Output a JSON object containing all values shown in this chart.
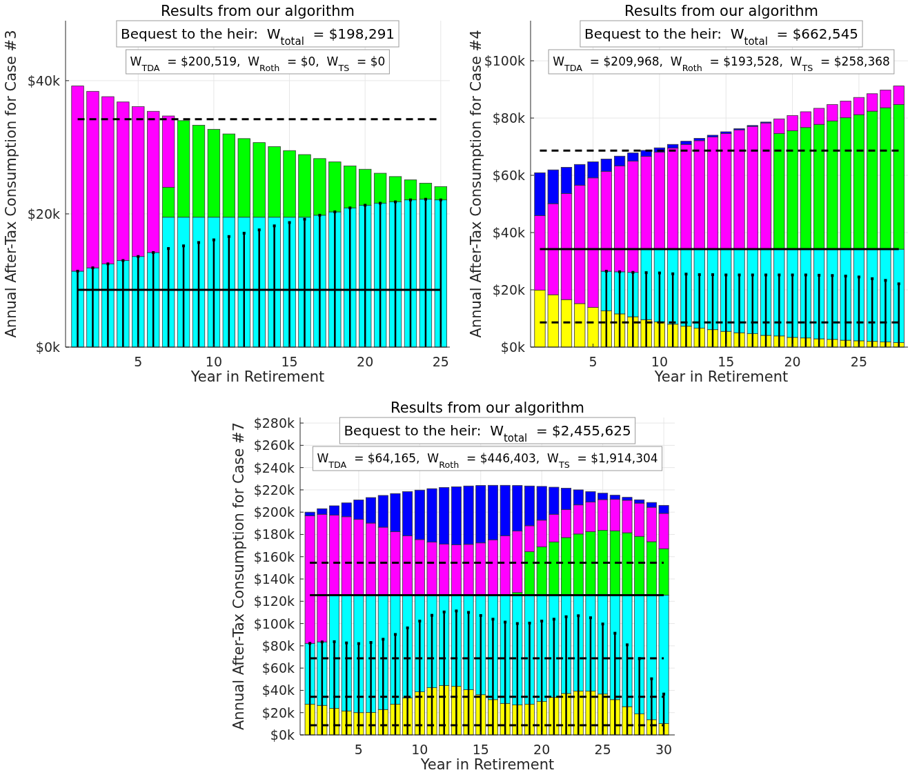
{
  "chart_data": [
    {
      "type": "bar",
      "stacked": true,
      "title": "Results from our algorithm",
      "xlabel": "Year in Retirement",
      "ylabel": "Annual After-Tax Consumption for Case #3",
      "annotations": [
        "Bequest to the heir:  W$_{total}$ = $198,291",
        "W$_{TDA}$ = $200,519,  W$_{Roth}$ = $0,  W$_{TS}$ = $0"
      ],
      "x": [
        1,
        2,
        3,
        4,
        5,
        6,
        7,
        8,
        9,
        10,
        11,
        12,
        13,
        14,
        15,
        16,
        17,
        18,
        19,
        20,
        21,
        22,
        23,
        24,
        25
      ],
      "xlim": [
        0.2,
        25.6
      ],
      "xticks": [
        5,
        10,
        15,
        20,
        25
      ],
      "ylim": [
        0,
        49
      ],
      "yticks": [
        {
          "value": 0,
          "label": "$0k"
        },
        {
          "value": 20,
          "label": "$20k"
        },
        {
          "value": 40,
          "label": "$40k"
        }
      ],
      "grid": true,
      "series": [
        {
          "color": "#00ffff",
          "values": [
            11.4,
            11.9,
            12.5,
            13.0,
            13.6,
            14.2,
            19.5,
            19.5,
            19.5,
            19.5,
            19.5,
            19.5,
            19.5,
            19.5,
            19.5,
            19.5,
            19.8,
            20.3,
            20.9,
            21.3,
            21.6,
            21.8,
            22.1,
            22.2,
            22.1
          ]
        },
        {
          "color": "#00ff00",
          "values": [
            null,
            null,
            null,
            null,
            null,
            null,
            4.5,
            14.5,
            13.8,
            13.2,
            12.5,
            11.8,
            11.2,
            10.6,
            10.0,
            9.4,
            8.5,
            7.5,
            6.3,
            5.4,
            4.5,
            3.8,
            3.0,
            2.4,
            2.0
          ]
        },
        {
          "color": "#ff00ff",
          "values": [
            27.8,
            26.5,
            25.1,
            23.8,
            22.5,
            21.2,
            10.7,
            null,
            null,
            null,
            null,
            null,
            null,
            null,
            null,
            null,
            null,
            null,
            null,
            null,
            null,
            null,
            null,
            null,
            null
          ]
        },
        {
          "type": "lollipop",
          "marker": "square",
          "color": "#000000",
          "values": [
            11.4,
            11.9,
            12.5,
            13.0,
            13.6,
            14.2,
            14.8,
            15.2,
            15.7,
            16.1,
            16.6,
            17.1,
            17.6,
            18.2,
            18.7,
            19.2,
            19.8,
            20.3,
            20.9,
            21.3,
            21.6,
            21.8,
            22.1,
            22.2,
            22.1
          ]
        }
      ],
      "ref_lines": [
        {
          "axis": "y",
          "value": 34.2,
          "color": "#000000",
          "line_style": "dashed"
        },
        {
          "axis": "y",
          "value": 8.6,
          "color": "#000000",
          "line_style": "solid"
        }
      ]
    },
    {
      "type": "bar",
      "stacked": true,
      "title": "Results from our algorithm",
      "xlabel": "Year in Retirement",
      "ylabel": "Annual After-Tax Consumption for Case #4",
      "annotations": [
        "Bequest to the heir:  W$_{total}$ = $662,545",
        "W$_{TDA}$ = $209,968,  W$_{Roth}$ = $193,528,  W$_{TS}$ = $258,368"
      ],
      "x": [
        1,
        2,
        3,
        4,
        5,
        6,
        7,
        8,
        9,
        10,
        11,
        12,
        13,
        14,
        15,
        16,
        17,
        18,
        19,
        20,
        21,
        22,
        23,
        24,
        25,
        26,
        27,
        28
      ],
      "xlim": [
        0.3,
        29.0
      ],
      "xticks": [
        5,
        10,
        15,
        20,
        25
      ],
      "ylim": [
        0,
        114
      ],
      "yticks": [
        {
          "value": 0,
          "label": "$0k"
        },
        {
          "value": 20,
          "label": "$20k"
        },
        {
          "value": 40,
          "label": "$40k"
        },
        {
          "value": 60,
          "label": "$60k"
        },
        {
          "value": 80,
          "label": "$80k"
        },
        {
          "value": 100,
          "label": "$100k"
        }
      ],
      "grid": true,
      "series": [
        {
          "color": "#ffff00",
          "values": [
            19.9,
            18.3,
            16.6,
            15.2,
            13.9,
            12.7,
            11.6,
            10.6,
            9.6,
            8.8,
            8.0,
            7.3,
            6.6,
            6.1,
            5.5,
            5.0,
            4.7,
            4.1,
            3.9,
            3.4,
            3.2,
            2.9,
            2.7,
            2.4,
            2.2,
            2.0,
            1.8,
            1.6
          ]
        },
        {
          "color": "#00ffff",
          "values": [
            null,
            null,
            null,
            null,
            null,
            13.8,
            14.7,
            15.5,
            24.6,
            25.4,
            26.2,
            26.9,
            27.6,
            28.1,
            28.7,
            29.2,
            29.5,
            30.1,
            30.3,
            30.8,
            31.0,
            31.3,
            31.5,
            31.8,
            32.0,
            32.2,
            32.4,
            32.6
          ]
        },
        {
          "color": "#00ff00",
          "values": [
            null,
            null,
            null,
            null,
            null,
            null,
            null,
            null,
            null,
            null,
            null,
            null,
            null,
            null,
            null,
            null,
            null,
            null,
            40.4,
            41.4,
            42.5,
            43.6,
            44.8,
            45.9,
            47.0,
            48.2,
            49.4,
            50.5
          ]
        },
        {
          "color": "#ff00ff",
          "values": [
            26.0,
            31.8,
            37.0,
            41.3,
            45.2,
            34.9,
            37.0,
            38.9,
            32.4,
            33.9,
            35.3,
            36.6,
            37.9,
            39.2,
            40.4,
            41.7,
            42.9,
            44.1,
            5.1,
            5.3,
            5.5,
            5.6,
            5.7,
            5.8,
            6.0,
            6.1,
            6.2,
            6.5
          ]
        },
        {
          "color": "#0000ff",
          "values": [
            15.0,
            11.8,
            9.2,
            7.3,
            5.6,
            4.3,
            3.4,
            2.8,
            2.1,
            1.5,
            1.3,
            1.1,
            0.8,
            0.6,
            0.6,
            0.4,
            0.3,
            0.3,
            null,
            null,
            null,
            null,
            null,
            null,
            null,
            null,
            null,
            null
          ]
        },
        {
          "type": "lollipop",
          "marker": "square",
          "color": "#000000",
          "values": [
            null,
            null,
            null,
            null,
            null,
            26.5,
            26.3,
            26.1,
            26.0,
            25.9,
            25.6,
            25.5,
            25.3,
            25.3,
            25.2,
            25.2,
            25.2,
            25.2,
            25.2,
            25.2,
            25.2,
            25.1,
            25.0,
            24.8,
            24.5,
            23.9,
            23.3,
            22.1
          ]
        }
      ],
      "ref_lines": [
        {
          "axis": "y",
          "value": 68.6,
          "color": "#000000",
          "line_style": "dashed"
        },
        {
          "axis": "y",
          "value": 34.2,
          "color": "#000000",
          "line_style": "solid"
        },
        {
          "axis": "y",
          "value": 8.6,
          "color": "#000000",
          "line_style": "dashed"
        }
      ]
    },
    {
      "type": "bar",
      "stacked": true,
      "title": "Results from our algorithm",
      "xlabel": "Year in Retirement",
      "ylabel": "Annual After-Tax Consumption for Case #7",
      "annotations": [
        "Bequest to the heir:  W$_{total}$ = $2,455,625",
        "W$_{TDA}$ = $64,165,  W$_{Roth}$ = $446,403,  W$_{TS}$ = $1,914,304"
      ],
      "x": [
        1,
        2,
        3,
        4,
        5,
        6,
        7,
        8,
        9,
        10,
        11,
        12,
        13,
        14,
        15,
        16,
        17,
        18,
        19,
        20,
        21,
        22,
        23,
        24,
        25,
        26,
        27,
        28,
        29,
        30
      ],
      "xlim": [
        0.2,
        30.9
      ],
      "xticks": [
        5,
        10,
        15,
        20,
        25,
        30
      ],
      "ylim": [
        0,
        285
      ],
      "yticks": [
        {
          "value": 0,
          "label": "$0k"
        },
        {
          "value": 20,
          "label": "$20k"
        },
        {
          "value": 40,
          "label": "$40k"
        },
        {
          "value": 60,
          "label": "$60k"
        },
        {
          "value": 80,
          "label": "$80k"
        },
        {
          "value": 100,
          "label": "$100k"
        },
        {
          "value": 120,
          "label": "$120k"
        },
        {
          "value": 140,
          "label": "$140k"
        },
        {
          "value": 160,
          "label": "$160k"
        },
        {
          "value": 180,
          "label": "$180k"
        },
        {
          "value": 200,
          "label": "$200k"
        },
        {
          "value": 220,
          "label": "$220k"
        },
        {
          "value": 240,
          "label": "$240k"
        },
        {
          "value": 260,
          "label": "$260k"
        },
        {
          "value": 280,
          "label": "$280k"
        }
      ],
      "grid": true,
      "series": [
        {
          "color": "#ffff00",
          "values": [
            27.6,
            26.5,
            23.9,
            21.5,
            20.0,
            20.2,
            22.8,
            27.6,
            33.3,
            38.7,
            42.4,
            44.3,
            43.7,
            40.7,
            36.1,
            31.7,
            28.3,
            27.0,
            27.6,
            30.0,
            33.7,
            37.2,
            39.3,
            39.3,
            36.7,
            31.7,
            25.4,
            18.9,
            13.7,
            10.2
          ]
        },
        {
          "color": "#00ffff",
          "values": [
            54.6,
            57.0,
            101.5,
            103.9,
            105.4,
            105.2,
            102.6,
            97.8,
            92.1,
            86.7,
            83.0,
            81.1,
            81.7,
            84.7,
            89.3,
            93.7,
            97.1,
            98.4,
            97.8,
            95.4,
            91.7,
            88.2,
            86.1,
            86.1,
            88.7,
            93.7,
            100.0,
            106.5,
            111.7,
            115.2
          ]
        },
        {
          "color": "#00ff00",
          "values": [
            null,
            null,
            null,
            null,
            null,
            null,
            null,
            null,
            null,
            null,
            null,
            null,
            null,
            null,
            null,
            null,
            null,
            2.4,
            39.2,
            43.5,
            47.9,
            51.8,
            55.0,
            57.2,
            58.3,
            57.9,
            56.1,
            52.9,
            48.1,
            41.8
          ]
        },
        {
          "color": "#ff00ff",
          "values": [
            114.5,
            114.6,
            72.0,
            70.5,
            68.1,
            64.8,
            61.1,
            57.0,
            53.3,
            50.0,
            47.7,
            45.9,
            45.3,
            45.7,
            47.0,
            49.8,
            53.3,
            55.3,
            23.2,
            23.9,
            24.8,
            25.2,
            26.1,
            26.5,
            27.6,
            28.2,
            29.2,
            29.8,
            30.9,
            31.7
          ]
        },
        {
          "color": "#0000ff",
          "values": [
            3.3,
            5.0,
            8.3,
            12.4,
            17.4,
            22.9,
            28.5,
            34.3,
            39.8,
            44.4,
            48.0,
            50.9,
            52.1,
            52.4,
            51.5,
            48.9,
            45.4,
            40.8,
            35.7,
            30.3,
            24.3,
            19.1,
            13.5,
            9.4,
            5.7,
            3.7,
            2.6,
            3.0,
            4.3,
            7.2
          ]
        },
        {
          "type": "lollipop",
          "marker": "square",
          "color": "#000000",
          "values": [
            82.2,
            83.5,
            83.7,
            82.6,
            82.0,
            83.0,
            85.9,
            90.2,
            96.1,
            102.2,
            107.4,
            110.4,
            111.3,
            110.0,
            107.2,
            103.9,
            101.3,
            100.0,
            100.4,
            102.2,
            103.9,
            106.1,
            107.0,
            105.2,
            99.6,
            91.3,
            80.9,
            68.5,
            50.4,
            36.7
          ]
        }
      ],
      "ref_lines": [
        {
          "axis": "y",
          "value": 154.6,
          "color": "#000000",
          "line_style": "dashed"
        },
        {
          "axis": "y",
          "value": 125.4,
          "color": "#000000",
          "line_style": "solid"
        },
        {
          "axis": "y",
          "value": 68.7,
          "color": "#000000",
          "line_style": "dashed"
        },
        {
          "axis": "y",
          "value": 34.3,
          "color": "#000000",
          "line_style": "dashed"
        },
        {
          "axis": "y",
          "value": 8.7,
          "color": "#000000",
          "line_style": "dashed"
        }
      ]
    }
  ]
}
